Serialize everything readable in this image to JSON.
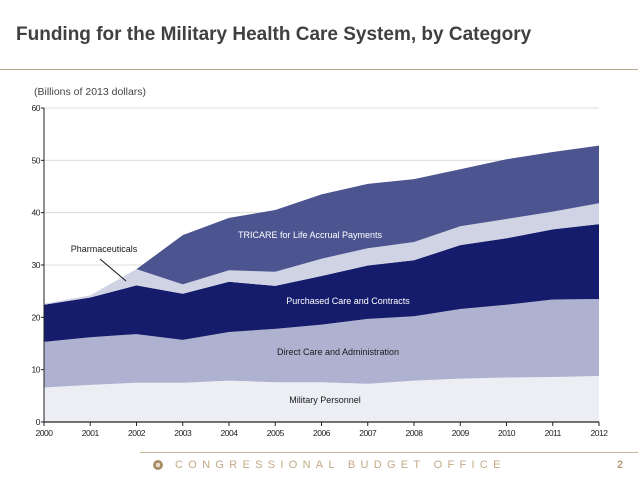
{
  "slide": {
    "title": "Funding for the Military Health Care System, by Category",
    "footer": "CONGRESSIONAL BUDGET OFFICE",
    "page_number": "2"
  },
  "chart_data": {
    "type": "area",
    "stacked": true,
    "title": "Funding for the Military Health Care System, by Category",
    "ylabel": "(Billions of 2013 dollars)",
    "xlabel": "",
    "ylim": [
      0,
      60
    ],
    "yticks": [
      "0",
      "10",
      "20",
      "30",
      "40",
      "50",
      "60"
    ],
    "categories": [
      "2000",
      "2001",
      "2002",
      "2003",
      "2004",
      "2005",
      "2006",
      "2007",
      "2008",
      "2009",
      "2010",
      "2011",
      "2012"
    ],
    "grid": true,
    "series": [
      {
        "name": "Military Personnel",
        "color": "#eceef4",
        "label_color": "#1a1a1a",
        "values": [
          6.6,
          7.1,
          7.5,
          7.5,
          7.9,
          7.6,
          7.6,
          7.3,
          7.9,
          8.3,
          8.5,
          8.6,
          8.8
        ]
      },
      {
        "name": "Direct Care and Administration",
        "color": "#aeb1cf",
        "label_color": "#1a1a1a",
        "values": [
          8.7,
          9.1,
          9.3,
          8.2,
          9.3,
          10.2,
          11.0,
          12.4,
          12.3,
          13.3,
          13.9,
          14.8,
          14.7
        ]
      },
      {
        "name": "Purchased Care and Contracts",
        "color": "#141c6b",
        "label_color": "#ffffff",
        "values": [
          7.1,
          7.6,
          9.3,
          8.8,
          9.6,
          8.2,
          9.3,
          10.2,
          10.7,
          12.2,
          12.7,
          13.4,
          14.3
        ]
      },
      {
        "name": "Pharmaceuticals",
        "color": "#d0d3e4",
        "label_color": "#1a1a1a",
        "values": [
          0.2,
          0.4,
          3.1,
          1.8,
          2.2,
          2.7,
          3.3,
          3.3,
          3.5,
          3.6,
          3.7,
          3.4,
          4.0
        ]
      },
      {
        "name": "TRICARE for Life Accrual Payments",
        "color": "#4d5591",
        "label_color": "#ffffff",
        "values": [
          0,
          0,
          0,
          9.4,
          10.0,
          11.8,
          12.3,
          12.3,
          12.0,
          10.9,
          11.4,
          11.4,
          11.0
        ]
      }
    ]
  }
}
